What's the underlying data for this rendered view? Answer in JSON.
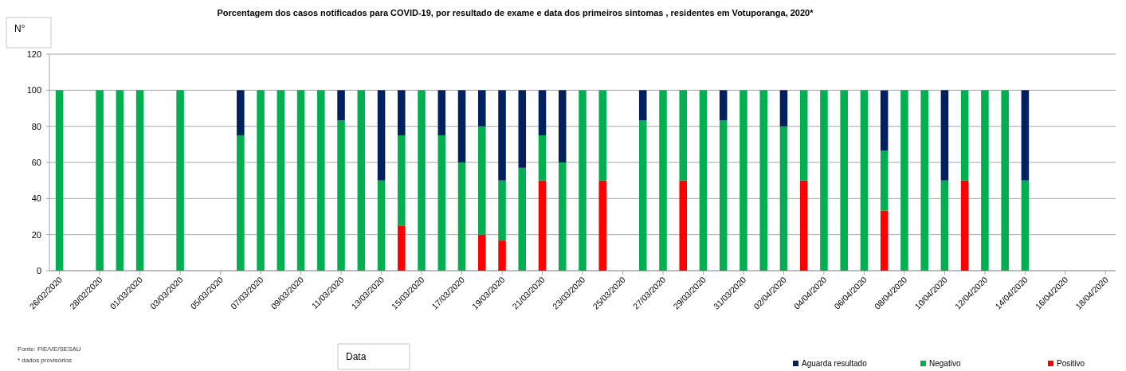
{
  "chart_data": {
    "type": "bar",
    "stacked": true,
    "title": "Porcentagem  dos casos notificados para COVID-19, por resultado de exame e data dos primeiros sintomas  , residentes  em Votuporanga, 2020*",
    "ylabel": "N°",
    "xlabel": "Data",
    "annotations": [
      "Fonte: FIE/VE/SESAU",
      "* dados provisórios"
    ],
    "categories": [
      "26/02/2020",
      null,
      "28/02/2020",
      null,
      "01/03/2020",
      null,
      "03/03/2020",
      null,
      "05/03/2020",
      null,
      "07/03/2020",
      null,
      "09/03/2020",
      null,
      "11/03/2020",
      null,
      "13/03/2020",
      null,
      "15/03/2020",
      null,
      "17/03/2020",
      null,
      "19/03/2020",
      null,
      "21/03/2020",
      null,
      "23/03/2020",
      null,
      "25/03/2020",
      null,
      "27/03/2020",
      null,
      "29/03/2020",
      null,
      "31/03/2020",
      null,
      "02/04/2020",
      null,
      "04/04/2020",
      null,
      "06/04/2020",
      null,
      "08/04/2020",
      null,
      "10/04/2020",
      null,
      "12/04/2020",
      null,
      "14/04/2020",
      null,
      "16/04/2020",
      null,
      "18/04/2020"
    ],
    "series": [
      {
        "name": "Positivo",
        "color": "#ff0000",
        "values": [
          null,
          null,
          null,
          null,
          null,
          null,
          null,
          null,
          null,
          null,
          null,
          null,
          null,
          null,
          null,
          null,
          null,
          25,
          null,
          null,
          null,
          20,
          16.7,
          null,
          50,
          null,
          null,
          50,
          null,
          null,
          null,
          50,
          null,
          null,
          null,
          null,
          null,
          50,
          null,
          null,
          null,
          33.3,
          null,
          null,
          null,
          50,
          null,
          null,
          null,
          null,
          null,
          null,
          null
        ]
      },
      {
        "name": "Negativo",
        "color": "#00b050",
        "values": [
          100,
          null,
          100,
          100,
          100,
          null,
          100,
          null,
          null,
          75,
          100,
          100,
          100,
          100,
          83.3,
          100,
          50,
          50,
          100,
          75,
          60,
          60,
          33.3,
          57,
          25,
          60,
          100,
          50,
          null,
          83.3,
          100,
          50,
          100,
          83.3,
          100,
          100,
          80,
          50,
          100,
          100,
          100,
          33.3,
          100,
          100,
          50,
          50,
          100,
          100,
          50,
          null,
          null,
          null,
          null
        ]
      },
      {
        "name": "Aguarda resultado",
        "color": "#002060",
        "values": [
          null,
          null,
          null,
          null,
          null,
          null,
          null,
          null,
          null,
          25,
          null,
          null,
          null,
          null,
          16.7,
          null,
          50,
          25,
          null,
          25,
          40,
          20,
          50,
          43,
          25,
          40,
          null,
          null,
          null,
          16.7,
          null,
          null,
          null,
          16.7,
          null,
          null,
          20,
          null,
          null,
          null,
          null,
          33.3,
          null,
          null,
          50,
          null,
          null,
          null,
          50,
          null,
          null,
          null,
          null
        ]
      }
    ],
    "ylim": [
      0,
      120
    ],
    "yticks": [
      0,
      20,
      40,
      60,
      80,
      100,
      120
    ],
    "grid": "y",
    "legend": "bottom"
  }
}
